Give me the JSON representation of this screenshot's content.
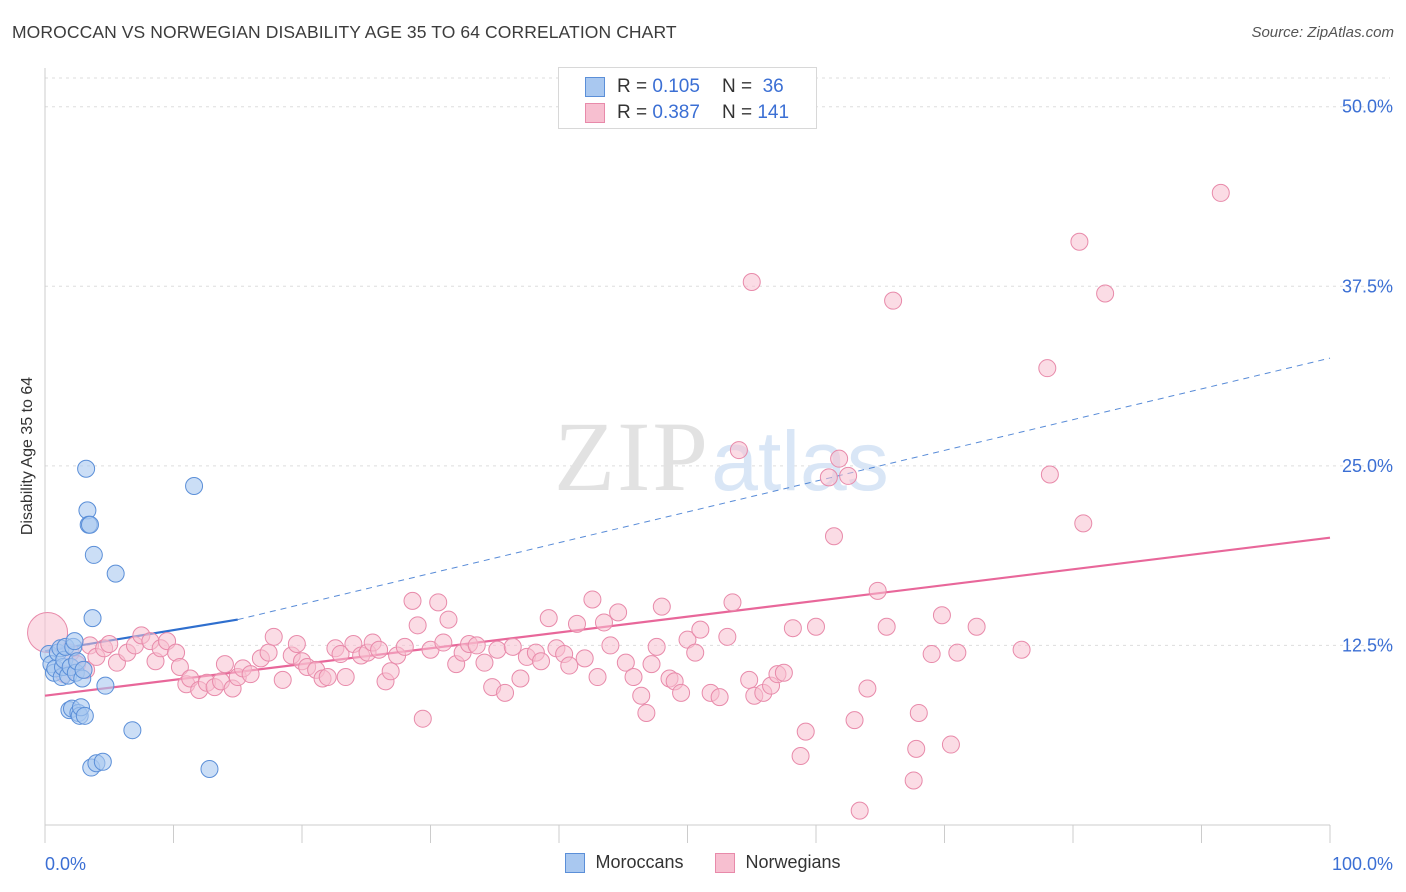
{
  "title": "MOROCCAN VS NORWEGIAN DISABILITY AGE 35 TO 64 CORRELATION CHART",
  "source": "Source: ZipAtlas.com",
  "watermark": {
    "zip": "ZIP",
    "atlas": "atlas"
  },
  "legend_top": {
    "rows": [
      {
        "r_label": "R =",
        "r_value": "0.105",
        "n_label": "N =",
        "n_value": "36"
      },
      {
        "r_label": "R =",
        "r_value": "0.387",
        "n_label": "N =",
        "n_value": "141"
      }
    ]
  },
  "colors": {
    "blue_fill": "#a9c8f0",
    "blue_stroke": "#5b8fd8",
    "blue_line": "#2f6fce",
    "pink_fill": "#f7bfd0",
    "pink_stroke": "#e88aaa",
    "pink_line": "#e8679a",
    "axis_text": "#3b6fd4",
    "grid": "#dddddd"
  },
  "chart_data": {
    "type": "scatter",
    "title": "MOROCCAN VS NORWEGIAN DISABILITY AGE 35 TO 64 CORRELATION CHART",
    "xlabel": "",
    "ylabel": "Disability Age 35 to 64",
    "xlim": [
      0,
      100
    ],
    "ylim": [
      0,
      52
    ],
    "x_tick_labels": [
      "0.0%",
      "100.0%"
    ],
    "y_ticks": [
      12.5,
      25.0,
      37.5,
      50.0
    ],
    "y_tick_labels": [
      "12.5%",
      "25.0%",
      "37.5%",
      "50.0%"
    ],
    "grid": true,
    "legend_placement": "top-center",
    "series": [
      {
        "name": "Moroccans",
        "color": "#a9c8f0",
        "points": [
          [
            0.3,
            11.9
          ],
          [
            0.5,
            11.2
          ],
          [
            0.7,
            10.6
          ],
          [
            0.8,
            10.9
          ],
          [
            1.0,
            12.0
          ],
          [
            1.2,
            12.3
          ],
          [
            1.3,
            10.3
          ],
          [
            1.4,
            11.0
          ],
          [
            1.5,
            11.5
          ],
          [
            1.6,
            12.4
          ],
          [
            1.8,
            10.4
          ],
          [
            1.9,
            8.0
          ],
          [
            2.0,
            11.0
          ],
          [
            2.1,
            8.1
          ],
          [
            2.2,
            12.4
          ],
          [
            2.3,
            12.8
          ],
          [
            2.4,
            10.6
          ],
          [
            2.5,
            11.4
          ],
          [
            2.6,
            7.8
          ],
          [
            2.7,
            7.6
          ],
          [
            2.8,
            8.2
          ],
          [
            2.9,
            10.2
          ],
          [
            3.0,
            10.8
          ],
          [
            3.1,
            7.6
          ],
          [
            3.2,
            24.8
          ],
          [
            3.3,
            21.9
          ],
          [
            3.4,
            20.9
          ],
          [
            3.5,
            20.9
          ],
          [
            3.6,
            4.0
          ],
          [
            3.7,
            14.4
          ],
          [
            3.8,
            18.8
          ],
          [
            4.0,
            4.3
          ],
          [
            4.5,
            4.4
          ],
          [
            4.7,
            9.7
          ],
          [
            5.5,
            17.5
          ],
          [
            6.8,
            6.6
          ],
          [
            11.6,
            23.6
          ],
          [
            12.8,
            3.9
          ]
        ],
        "trend": {
          "x": [
            0,
            15
          ],
          "y": [
            12.1,
            14.3
          ]
        },
        "trend_dashed_to": {
          "x": [
            15,
            100
          ],
          "y": [
            14.3,
            32.5
          ]
        }
      },
      {
        "name": "Norwegians",
        "color": "#f7bfd0",
        "points": [
          [
            0.2,
            13.4
          ],
          [
            1.5,
            10.5
          ],
          [
            2.0,
            12.0
          ],
          [
            2.5,
            11.2
          ],
          [
            3.2,
            10.8
          ],
          [
            3.5,
            12.5
          ],
          [
            4.0,
            11.7
          ],
          [
            4.6,
            12.3
          ],
          [
            5.0,
            12.6
          ],
          [
            5.6,
            11.3
          ],
          [
            6.4,
            12.0
          ],
          [
            7.0,
            12.5
          ],
          [
            7.5,
            13.2
          ],
          [
            8.2,
            12.8
          ],
          [
            8.6,
            11.4
          ],
          [
            9.0,
            12.3
          ],
          [
            9.5,
            12.8
          ],
          [
            10.2,
            12.0
          ],
          [
            10.5,
            11.0
          ],
          [
            11.0,
            9.8
          ],
          [
            11.3,
            10.2
          ],
          [
            12.0,
            9.4
          ],
          [
            12.6,
            9.9
          ],
          [
            13.2,
            9.6
          ],
          [
            13.7,
            10.0
          ],
          [
            14.0,
            11.2
          ],
          [
            14.6,
            9.5
          ],
          [
            15.0,
            10.3
          ],
          [
            15.4,
            10.9
          ],
          [
            16.0,
            10.5
          ],
          [
            16.8,
            11.6
          ],
          [
            17.4,
            12.0
          ],
          [
            17.8,
            13.1
          ],
          [
            18.5,
            10.1
          ],
          [
            19.2,
            11.8
          ],
          [
            19.6,
            12.6
          ],
          [
            20.0,
            11.4
          ],
          [
            20.4,
            11.0
          ],
          [
            21.1,
            10.8
          ],
          [
            21.6,
            10.2
          ],
          [
            22.0,
            10.3
          ],
          [
            22.6,
            12.3
          ],
          [
            23.0,
            11.9
          ],
          [
            23.4,
            10.3
          ],
          [
            24.0,
            12.6
          ],
          [
            24.6,
            11.8
          ],
          [
            25.1,
            12.0
          ],
          [
            25.5,
            12.7
          ],
          [
            26.0,
            12.2
          ],
          [
            26.5,
            10.0
          ],
          [
            26.9,
            10.7
          ],
          [
            27.4,
            11.8
          ],
          [
            28.0,
            12.4
          ],
          [
            28.6,
            15.6
          ],
          [
            29.0,
            13.9
          ],
          [
            29.4,
            7.4
          ],
          [
            30.0,
            12.2
          ],
          [
            30.6,
            15.5
          ],
          [
            31.0,
            12.7
          ],
          [
            31.4,
            14.3
          ],
          [
            32.0,
            11.2
          ],
          [
            32.5,
            12.0
          ],
          [
            33.0,
            12.6
          ],
          [
            33.6,
            12.5
          ],
          [
            34.2,
            11.3
          ],
          [
            34.8,
            9.6
          ],
          [
            35.2,
            12.2
          ],
          [
            35.8,
            9.2
          ],
          [
            36.4,
            12.4
          ],
          [
            37.0,
            10.2
          ],
          [
            37.5,
            11.7
          ],
          [
            38.2,
            12.0
          ],
          [
            38.6,
            11.4
          ],
          [
            39.2,
            14.4
          ],
          [
            39.8,
            12.3
          ],
          [
            40.4,
            11.9
          ],
          [
            40.8,
            11.1
          ],
          [
            41.4,
            14.0
          ],
          [
            42.0,
            11.6
          ],
          [
            42.6,
            15.7
          ],
          [
            43.0,
            10.3
          ],
          [
            43.5,
            14.1
          ],
          [
            44.0,
            12.5
          ],
          [
            44.6,
            14.8
          ],
          [
            45.2,
            11.3
          ],
          [
            45.8,
            10.3
          ],
          [
            46.4,
            9.0
          ],
          [
            46.8,
            7.8
          ],
          [
            47.2,
            11.2
          ],
          [
            47.6,
            12.4
          ],
          [
            48.0,
            15.2
          ],
          [
            48.6,
            10.2
          ],
          [
            49.0,
            10.0
          ],
          [
            49.5,
            9.2
          ],
          [
            50.0,
            12.9
          ],
          [
            50.6,
            12.0
          ],
          [
            51.0,
            13.6
          ],
          [
            51.8,
            9.2
          ],
          [
            52.5,
            8.9
          ],
          [
            53.1,
            13.1
          ],
          [
            53.5,
            15.5
          ],
          [
            54.0,
            26.1
          ],
          [
            54.8,
            10.1
          ],
          [
            55.2,
            9.0
          ],
          [
            55.9,
            9.2
          ],
          [
            56.5,
            9.7
          ],
          [
            57.0,
            10.5
          ],
          [
            57.5,
            10.6
          ],
          [
            58.2,
            13.7
          ],
          [
            58.8,
            4.8
          ],
          [
            59.2,
            6.5
          ],
          [
            60.0,
            13.8
          ],
          [
            61.0,
            24.2
          ],
          [
            61.4,
            20.1
          ],
          [
            61.8,
            25.5
          ],
          [
            62.5,
            24.3
          ],
          [
            63.0,
            7.3
          ],
          [
            63.4,
            1.0
          ],
          [
            64.0,
            9.5
          ],
          [
            64.8,
            16.3
          ],
          [
            65.5,
            13.8
          ],
          [
            66.0,
            36.5
          ],
          [
            67.6,
            3.1
          ],
          [
            67.8,
            5.3
          ],
          [
            68.0,
            7.8
          ],
          [
            69.0,
            11.9
          ],
          [
            69.8,
            14.6
          ],
          [
            70.5,
            5.6
          ],
          [
            71.0,
            12.0
          ],
          [
            72.5,
            13.8
          ],
          [
            76.0,
            12.2
          ],
          [
            78.0,
            31.8
          ],
          [
            78.2,
            24.4
          ],
          [
            80.5,
            40.6
          ],
          [
            80.8,
            21.0
          ],
          [
            82.5,
            37.0
          ],
          [
            91.5,
            44.0
          ],
          [
            55.0,
            37.8
          ]
        ],
        "trend": {
          "x": [
            0,
            100
          ],
          "y": [
            9.0,
            20.0
          ]
        }
      }
    ]
  },
  "bottom_legend": [
    {
      "name": "Moroccans"
    },
    {
      "name": "Norwegians"
    }
  ],
  "y_axis_title": "Disability Age 35 to 64"
}
